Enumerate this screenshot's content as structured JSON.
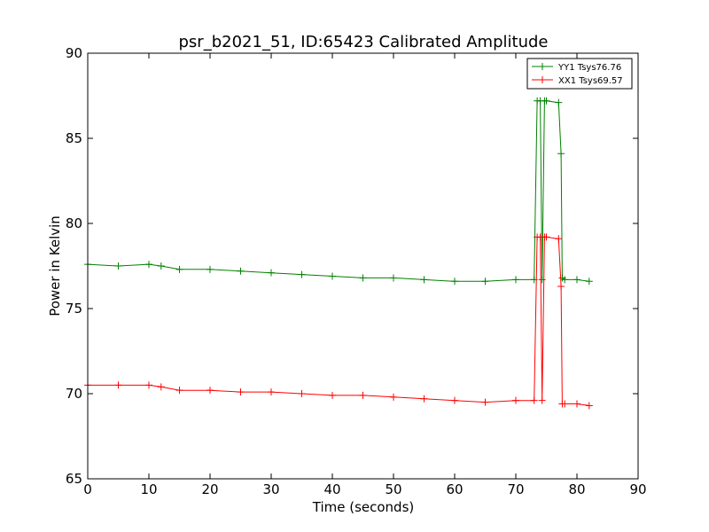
{
  "chart_data": {
    "type": "line",
    "title": "psr_b2021_51, ID:65423 Calibrated Amplitude",
    "xlabel": "Time (seconds)",
    "ylabel": "Power in Kelvin",
    "xlim": [
      0,
      90
    ],
    "ylim": [
      65,
      90
    ],
    "xticks": [
      "0",
      "10",
      "20",
      "30",
      "40",
      "50",
      "60",
      "70",
      "80",
      "90"
    ],
    "yticks": [
      "65",
      "70",
      "75",
      "80",
      "85",
      "90"
    ],
    "grid": false,
    "legend_position": "top-right",
    "series": [
      {
        "name": "YY1 Tsys76.76",
        "color": "#008000",
        "marker": "+",
        "x": [
          0,
          5,
          10,
          12,
          15,
          20,
          25,
          30,
          35,
          40,
          45,
          50,
          55,
          60,
          65,
          70,
          73,
          73.5,
          74,
          74.3,
          74.7,
          75,
          77,
          77.4,
          77.6,
          78,
          80,
          82
        ],
        "y": [
          77.6,
          77.5,
          77.6,
          77.5,
          77.3,
          77.3,
          77.2,
          77.1,
          77.0,
          76.9,
          76.8,
          76.8,
          76.7,
          76.6,
          76.6,
          76.7,
          76.7,
          87.2,
          87.2,
          76.7,
          87.2,
          87.2,
          87.1,
          84.1,
          76.8,
          76.7,
          76.7,
          76.6
        ]
      },
      {
        "name": "XX1 Tsys69.57",
        "color": "#ff0000",
        "marker": "+",
        "x": [
          0,
          5,
          10,
          12,
          15,
          20,
          25,
          30,
          35,
          40,
          45,
          50,
          55,
          60,
          65,
          70,
          73,
          73.5,
          74,
          74.3,
          74.7,
          75,
          77,
          77.4,
          77.6,
          78,
          80,
          82
        ],
        "y": [
          70.5,
          70.5,
          70.5,
          70.4,
          70.2,
          70.2,
          70.1,
          70.1,
          70.0,
          69.9,
          69.9,
          69.8,
          69.7,
          69.6,
          69.5,
          69.6,
          69.6,
          79.2,
          79.2,
          69.6,
          79.2,
          79.2,
          79.1,
          76.3,
          69.4,
          69.4,
          69.4,
          69.3
        ]
      }
    ]
  }
}
